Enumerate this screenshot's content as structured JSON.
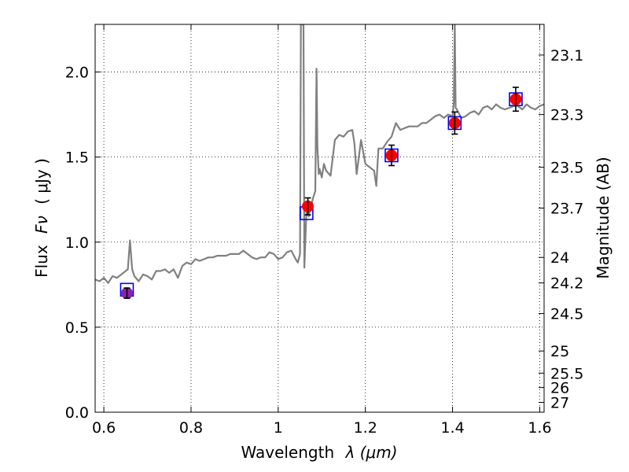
{
  "chart_data": {
    "type": "scatter",
    "xlabel_prefix": "Wavelength",
    "xlabel_unit": "λ (μm)",
    "ylabel_prefix": "Flux",
    "ylabel_symbol": "Fν",
    "ylabel_unit": "( μJy )",
    "y2label": "Magnitude (AB)",
    "xlim": [
      0.58,
      1.61
    ],
    "ylim": [
      0.0,
      2.28
    ],
    "grid": true,
    "x_ticks": [
      0.6,
      0.8,
      1.0,
      1.2,
      1.4,
      1.6
    ],
    "x_tick_labels": [
      "0.6",
      "0.8",
      "1",
      "1.2",
      "1.4",
      "1.6"
    ],
    "y_ticks": [
      0.0,
      0.5,
      1.0,
      1.5,
      2.0
    ],
    "y_tick_labels": [
      "0.0",
      "0.5",
      "1.0",
      "1.5",
      "2.0"
    ],
    "magnitude_ticks": [
      {
        "label": "23.1",
        "flux": 2.1
      },
      {
        "label": "23.3",
        "flux": 1.75
      },
      {
        "label": "23.5",
        "flux": 1.44
      },
      {
        "label": "23.7",
        "flux": 1.2
      },
      {
        "label": "24",
        "flux": 0.91
      },
      {
        "label": "24.2",
        "flux": 0.76
      },
      {
        "label": "24.5",
        "flux": 0.58
      },
      {
        "label": "25",
        "flux": 0.36
      },
      {
        "label": "25.5",
        "flux": 0.23
      },
      {
        "label": "26",
        "flux": 0.145
      },
      {
        "label": "27",
        "flux": 0.058
      }
    ],
    "spectrum": {
      "color": "#808080",
      "x": [
        0.58,
        0.59,
        0.6,
        0.61,
        0.62,
        0.63,
        0.64,
        0.645,
        0.65,
        0.655,
        0.66,
        0.665,
        0.67,
        0.68,
        0.69,
        0.7,
        0.71,
        0.72,
        0.73,
        0.74,
        0.75,
        0.76,
        0.77,
        0.78,
        0.79,
        0.8,
        0.81,
        0.82,
        0.83,
        0.84,
        0.85,
        0.86,
        0.87,
        0.88,
        0.89,
        0.9,
        0.91,
        0.92,
        0.93,
        0.94,
        0.95,
        0.96,
        0.97,
        0.98,
        0.99,
        1.0,
        1.01,
        1.02,
        1.03,
        1.04,
        1.045,
        1.05,
        1.052,
        1.055,
        1.058,
        1.06,
        1.065,
        1.07,
        1.075,
        1.08,
        1.085,
        1.088,
        1.09,
        1.093,
        1.095,
        1.1,
        1.105,
        1.11,
        1.12,
        1.13,
        1.14,
        1.15,
        1.16,
        1.17,
        1.175,
        1.18,
        1.19,
        1.2,
        1.21,
        1.22,
        1.225,
        1.23,
        1.24,
        1.25,
        1.26,
        1.27,
        1.28,
        1.29,
        1.3,
        1.31,
        1.32,
        1.33,
        1.34,
        1.35,
        1.36,
        1.37,
        1.38,
        1.39,
        1.4,
        1.403,
        1.405,
        1.407,
        1.41,
        1.42,
        1.43,
        1.44,
        1.45,
        1.46,
        1.47,
        1.48,
        1.49,
        1.5,
        1.51,
        1.52,
        1.53,
        1.54,
        1.55,
        1.56,
        1.57,
        1.58,
        1.59,
        1.6,
        1.61
      ],
      "y": [
        0.78,
        0.77,
        0.79,
        0.76,
        0.8,
        0.79,
        0.81,
        0.82,
        0.83,
        0.84,
        1.01,
        0.84,
        0.8,
        0.77,
        0.81,
        0.8,
        0.78,
        0.83,
        0.83,
        0.84,
        0.82,
        0.84,
        0.79,
        0.86,
        0.88,
        0.87,
        0.9,
        0.89,
        0.9,
        0.91,
        0.91,
        0.92,
        0.92,
        0.92,
        0.93,
        0.93,
        0.93,
        0.95,
        0.93,
        0.91,
        0.9,
        0.91,
        0.91,
        0.94,
        0.93,
        0.9,
        0.91,
        0.94,
        0.95,
        0.9,
        0.88,
        0.93,
        2.28,
        2.28,
        2.28,
        0.85,
        1.2,
        1.15,
        1.21,
        1.26,
        1.3,
        2.02,
        1.56,
        1.4,
        1.43,
        1.38,
        1.46,
        1.42,
        1.39,
        1.6,
        1.63,
        1.62,
        1.65,
        1.66,
        1.58,
        1.4,
        1.6,
        1.46,
        1.44,
        1.42,
        1.33,
        1.55,
        1.55,
        1.59,
        1.62,
        1.7,
        1.66,
        1.67,
        1.68,
        1.68,
        1.68,
        1.7,
        1.7,
        1.72,
        1.74,
        1.75,
        1.73,
        1.75,
        1.74,
        1.82,
        2.28,
        1.79,
        1.78,
        1.73,
        1.74,
        1.76,
        1.77,
        1.75,
        1.79,
        1.8,
        1.78,
        1.81,
        1.79,
        1.78,
        1.79,
        1.8,
        1.8,
        1.78,
        1.81,
        1.79,
        1.78,
        1.8,
        1.81
      ]
    },
    "model_points": {
      "marker": "open-square",
      "color": "#0000ff",
      "x": [
        0.653,
        1.065,
        1.26,
        1.405,
        1.545
      ],
      "y": [
        0.72,
        1.17,
        1.51,
        1.7,
        1.84
      ]
    },
    "observed_points": {
      "marker": "circle",
      "colors": [
        "#8b22a8",
        "#ff0000",
        "#ff0000",
        "#ff0000",
        "#ff0000"
      ],
      "x": [
        0.653,
        1.068,
        1.26,
        1.405,
        1.545
      ],
      "y": [
        0.7,
        1.21,
        1.51,
        1.7,
        1.84
      ],
      "yerr": [
        0.03,
        0.05,
        0.06,
        0.065,
        0.07
      ]
    }
  }
}
